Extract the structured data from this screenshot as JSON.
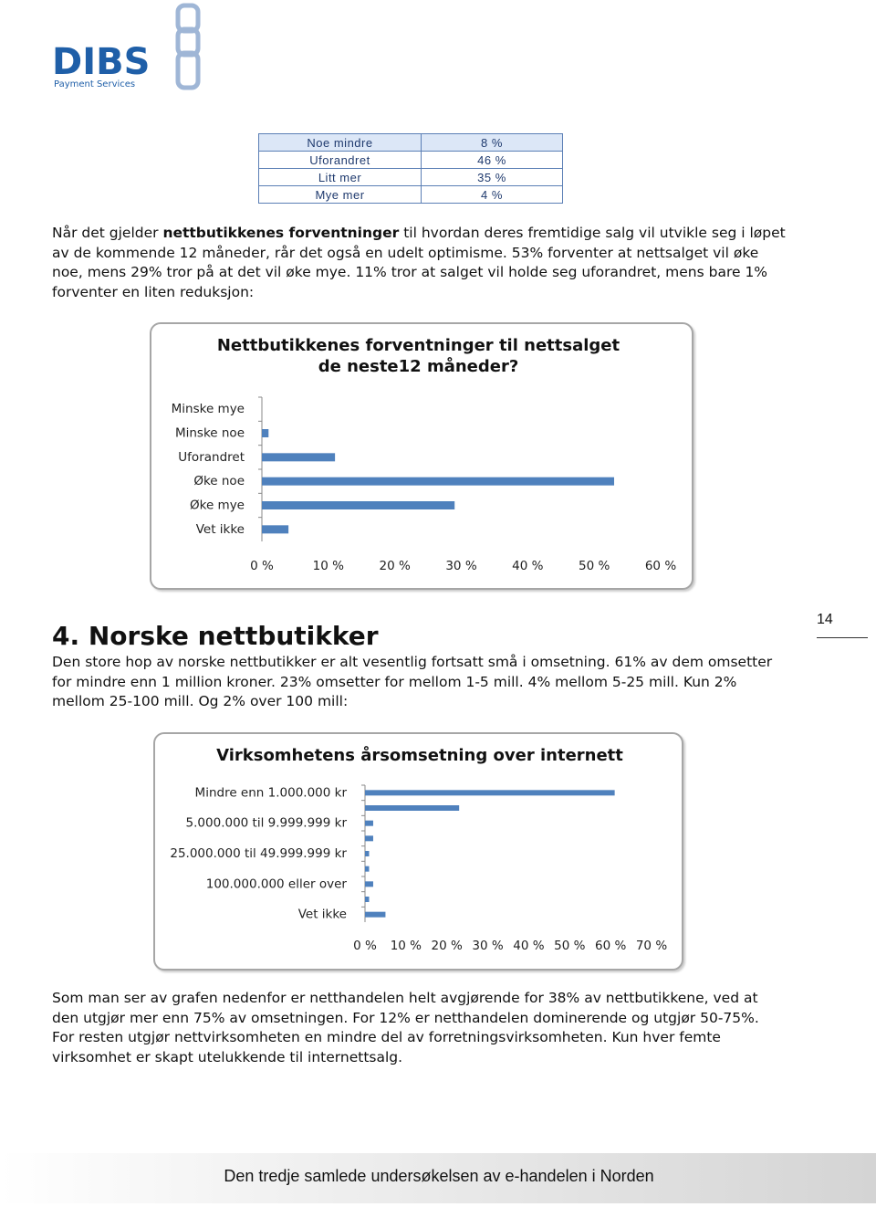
{
  "logo": {
    "name": "DIBS",
    "tagline": "Payment Services"
  },
  "table": {
    "rows": [
      [
        "Noe mindre",
        "8 %"
      ],
      [
        "Uforandret",
        "46 %"
      ],
      [
        "Litt mer",
        "35 %"
      ],
      [
        "Mye mer",
        "4 %"
      ]
    ]
  },
  "paragraph1": {
    "before": "Når det gjelder ",
    "bold": "nettbutikkenes forventninger",
    "after": " til hvordan deres fremtidige salg vil utvikle seg i løpet av de kommende 12 måneder, rår det også en udelt optimisme. 53% forventer at nettsalget vil øke noe, mens 29% tror på at det vil øke mye. 11% tror at salget vil holde seg uforandret, mens bare 1% forventer en liten reduksjon:"
  },
  "heading": "4. Norske nettbutikker",
  "page_number": "14",
  "paragraph2": "Den store hop av norske nettbutikker er alt vesentlig fortsatt små i omsetning. 61% av dem omsetter for mindre enn 1 million kroner. 23% omsetter for mellom 1-5 mill. 4% mellom 5-25 mill. Kun 2% mellom 25-100 mill. Og 2% over 100 mill:",
  "paragraph3": "Som man ser av grafen nedenfor er netthandelen helt avgjørende for 38% av nettbutikkene, ved at den utgjør mer enn 75% av omsetningen. For 12% er netthandelen dominerende og utgjør 50-75%. For resten utgjør nettvirksomheten en mindre del av forretningsvirksomheten. Kun hver femte virksomhet er skapt utelukkende til internettsalg.",
  "footer": "Den tredje samlede undersøkelsen av e-handelen i Norden",
  "chart_data": [
    {
      "type": "hbar",
      "title": "Nettbutikkenes forventninger til  nettsalget de neste12 måneder?",
      "categories": [
        "Minske mye",
        "Minske noe",
        "Uforandret",
        "Øke noe",
        "Øke mye",
        "Vet ikke"
      ],
      "values": [
        0,
        1,
        11,
        53,
        29,
        4
      ],
      "color": "#4f81bd",
      "xlim": [
        0,
        60
      ],
      "xticks": [
        {
          "value": 0,
          "label": "0 %"
        },
        {
          "value": 10,
          "label": "10 %"
        },
        {
          "value": 20,
          "label": "20 %"
        },
        {
          "value": 30,
          "label": "30 %"
        },
        {
          "value": 40,
          "label": "40 %"
        },
        {
          "value": 50,
          "label": "50 %"
        },
        {
          "value": 60,
          "label": "60 %"
        }
      ]
    },
    {
      "type": "hbar",
      "title": "Virksomhetens årsomsetning over internett",
      "categories": [
        "Mindre enn 1.000.000 kr",
        null,
        "5.000.000 til 9.999.999 kr",
        null,
        "25.000.000 til 49.999.999 kr",
        null,
        "100.000.000 eller over",
        null,
        "Vet ikke"
      ],
      "values": [
        61,
        23,
        2,
        2,
        1,
        1,
        2,
        1,
        5
      ],
      "color": "#4f81bd",
      "xlim": [
        0,
        70
      ],
      "xticks": [
        {
          "value": 0,
          "label": "0 %"
        },
        {
          "value": 10,
          "label": "10 %"
        },
        {
          "value": 20,
          "label": "20 %"
        },
        {
          "value": 30,
          "label": "30 %"
        },
        {
          "value": 40,
          "label": "40 %"
        },
        {
          "value": 50,
          "label": "50 %"
        },
        {
          "value": 60,
          "label": "60 %"
        },
        {
          "value": 70,
          "label": "70 %"
        }
      ]
    }
  ]
}
